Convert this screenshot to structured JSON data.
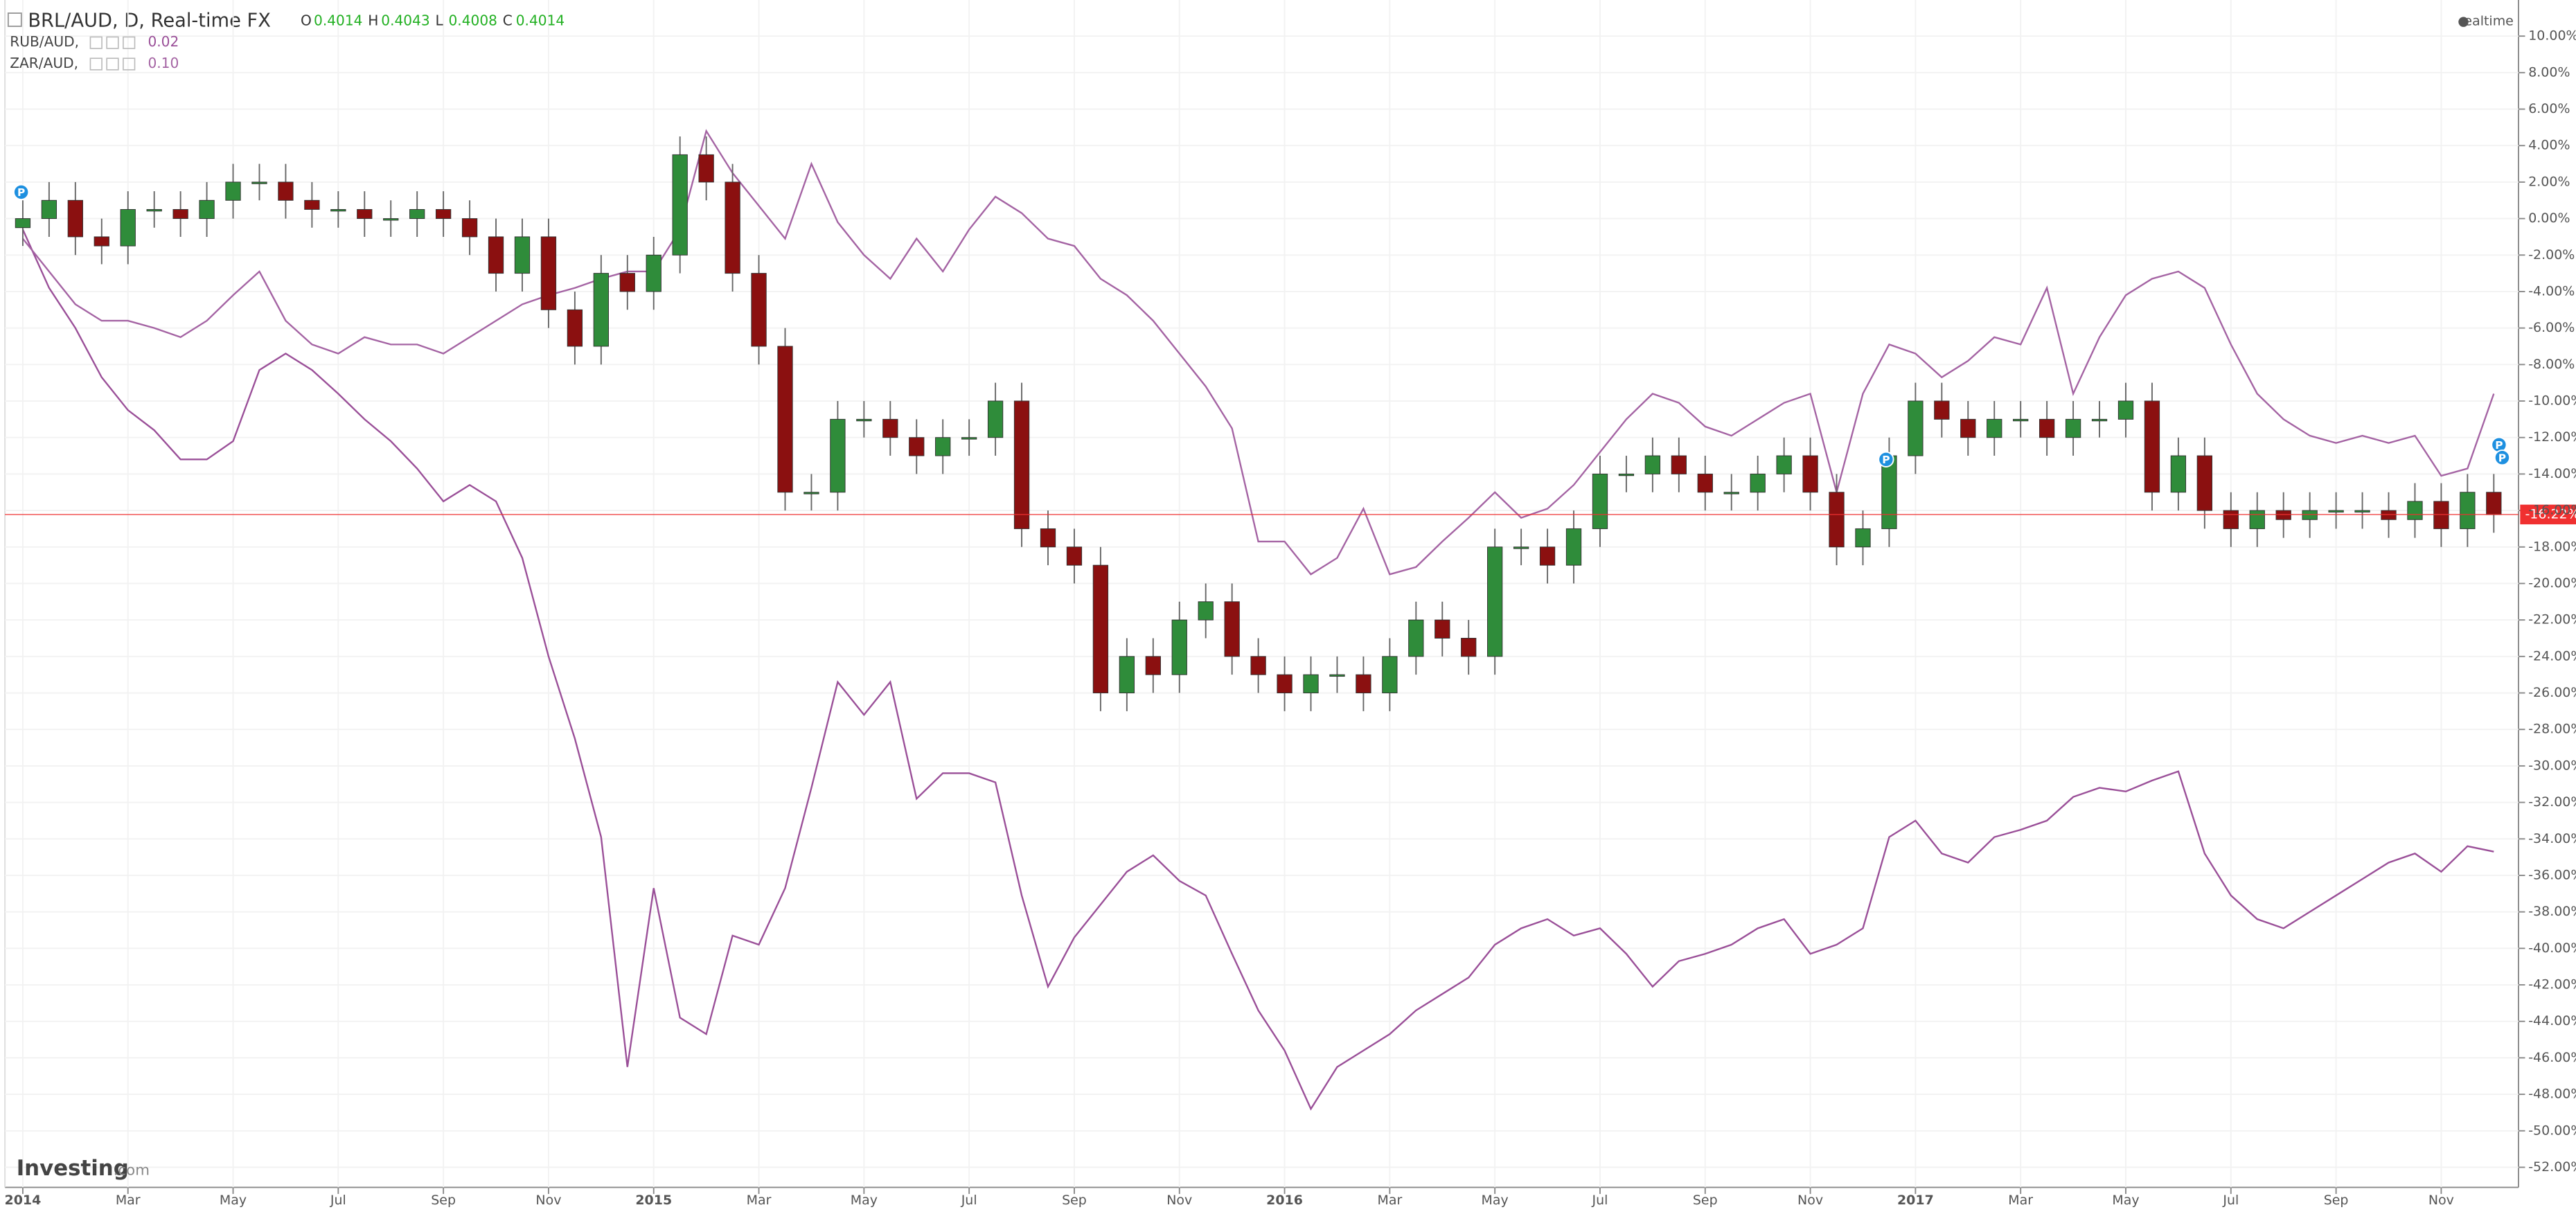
{
  "chart_data": {
    "type": "candlestick",
    "header": "BRL/AUD, D, Real-time FX",
    "ohlc_labels": [
      "O",
      "H",
      "L",
      "C"
    ],
    "ohlc": [
      0.4014,
      0.4043,
      0.4008,
      0.4014
    ],
    "ohlc_color": "#22b022",
    "status": "realtime",
    "logo_main": "Investing",
    "logo_suffix": ".com",
    "candles": {
      "up_color": "#2f8c3a",
      "down_color": "#8b1010",
      "wick_color": "#666666",
      "x": [
        0,
        0.5,
        1,
        1.5,
        2,
        2.5,
        3,
        3.5,
        4,
        4.5,
        5,
        5.5,
        6,
        6.5,
        7,
        7.5,
        8,
        8.5,
        9,
        9.5,
        10,
        10.5,
        11,
        11.5,
        12,
        12.5,
        13,
        13.5,
        14,
        14.5,
        15,
        15.5,
        16,
        16.5,
        17,
        17.5,
        18,
        18.5,
        19,
        19.5,
        20,
        20.5,
        21,
        21.5,
        22,
        22.5,
        23,
        23.5,
        24,
        24.5,
        25,
        25.5,
        26,
        26.5,
        27,
        27.5,
        28,
        28.5,
        29,
        29.5,
        30,
        30.5,
        31,
        31.5,
        32,
        32.5,
        33,
        33.5,
        34,
        34.5,
        35,
        35.5,
        36,
        36.5,
        37,
        37.5,
        38,
        38.5,
        39,
        39.5,
        40,
        40.5,
        41,
        41.5,
        42,
        42.5,
        43,
        43.5,
        44,
        44.5,
        45,
        45.5,
        46,
        46.5,
        47
      ],
      "open": [
        -0.5,
        0,
        1,
        -1,
        -1.5,
        0.5,
        0.5,
        0,
        1,
        2,
        2,
        1,
        0.5,
        0.5,
        0,
        0,
        0.5,
        0,
        -1,
        -3,
        -1,
        -5,
        -7,
        -3,
        -4,
        -2,
        3.5,
        2,
        -3,
        -7,
        -15,
        -15,
        -11,
        -11,
        -12,
        -13,
        -12,
        -12,
        -10,
        -17,
        -18,
        -19,
        -26,
        -24,
        -25,
        -22,
        -21,
        -24,
        -25,
        -26,
        -25,
        -25,
        -26,
        -24,
        -22,
        -23,
        -24,
        -18,
        -18,
        -19,
        -17,
        -14,
        -14,
        -13,
        -14,
        -15,
        -15,
        -14,
        -13,
        -15,
        -18,
        -17,
        -13,
        -10,
        -11,
        -12,
        -11,
        -11,
        -12,
        -11,
        -11,
        -10,
        -15,
        -13,
        -16,
        -17,
        -16,
        -16.5,
        -16,
        -16,
        -16,
        -16.5,
        -15.5,
        -17,
        -15
      ],
      "high": [
        1,
        2,
        2,
        0,
        1.5,
        1.5,
        1.5,
        2,
        3,
        3,
        3,
        2,
        1.5,
        1.5,
        1,
        1.5,
        1.5,
        1,
        0,
        0,
        0,
        -4,
        -2,
        -2,
        -1,
        4.5,
        4.5,
        3,
        -2,
        -6,
        -14,
        -10,
        -10,
        -10,
        -11,
        -11,
        -11,
        -9,
        -9,
        -16,
        -17,
        -18,
        -23,
        -23,
        -21,
        -20,
        -20,
        -23,
        -24,
        -24,
        -24,
        -24,
        -23,
        -21,
        -21,
        -22,
        -17,
        -17,
        -17,
        -16,
        -13,
        -13,
        -12,
        -12,
        -13,
        -14,
        -13,
        -12,
        -12,
        -14,
        -16,
        -12,
        -9,
        -9,
        -10,
        -10,
        -10,
        -10,
        -10,
        -10,
        -9,
        -9,
        -12,
        -12,
        -15,
        -15,
        -15,
        -15,
        -15,
        -15,
        -15,
        -14.5,
        -14.5,
        -14,
        -14
      ],
      "low": [
        -1.5,
        -1,
        -2,
        -2.5,
        -2.5,
        -0.5,
        -1,
        -1,
        0,
        1,
        0,
        -0.5,
        -0.5,
        -1,
        -1,
        -1,
        -1,
        -2,
        -4,
        -4,
        -6,
        -8,
        -8,
        -5,
        -5,
        -3,
        1,
        -4,
        -8,
        -16,
        -16,
        -16,
        -12,
        -13,
        -14,
        -14,
        -13,
        -13,
        -18,
        -19,
        -20,
        -27,
        -27,
        -26,
        -26,
        -23,
        -25,
        -26,
        -27,
        -27,
        -26,
        -27,
        -27,
        -25,
        -24,
        -25,
        -25,
        -19,
        -20,
        -20,
        -18,
        -15,
        -15,
        -15,
        -16,
        -16,
        -16,
        -15,
        -16,
        -19,
        -19,
        -18,
        -14,
        -12,
        -13,
        -13,
        -12,
        -13,
        -13,
        -12,
        -12,
        -16,
        -16,
        -17,
        -18,
        -18,
        -17.5,
        -17.5,
        -17,
        -17,
        -17.5,
        -17.5,
        -18,
        -18,
        -17.22
      ],
      "close": [
        0,
        1,
        -1,
        -1.5,
        0.5,
        0.5,
        0,
        1,
        2,
        2,
        1,
        0.5,
        0.5,
        0,
        0,
        0.5,
        0,
        -1,
        -3,
        -1,
        -5,
        -7,
        -3,
        -4,
        -2,
        3.5,
        2,
        -3,
        -7,
        -15,
        -15,
        -11,
        -11,
        -12,
        -13,
        -12,
        -12,
        -10,
        -17,
        -18,
        -19,
        -26,
        -24,
        -25,
        -22,
        -21,
        -24,
        -25,
        -26,
        -25,
        -25,
        -26,
        -24,
        -22,
        -23,
        -24,
        -18,
        -18,
        -19,
        -17,
        -14,
        -14,
        -13,
        -14,
        -15,
        -15,
        -14,
        -13,
        -15,
        -18,
        -17,
        -13,
        -10,
        -11,
        -12,
        -11,
        -11,
        -12,
        -11,
        -11,
        -10,
        -15,
        -13,
        -16,
        -17,
        -16,
        -16.5,
        -16,
        -16,
        -16,
        -16.5,
        -15.5,
        -17,
        -15,
        -16.22
      ]
    },
    "series": [
      {
        "name": "RUB/AUD,",
        "type": "line",
        "color": "#9a4f98",
        "last": {
          "value": 0.02,
          "label": "0.02"
        },
        "x": [
          0,
          0.5,
          1,
          1.5,
          2,
          2.5,
          3,
          3.5,
          4,
          4.5,
          5,
          5.5,
          6,
          6.5,
          7,
          7.5,
          8,
          8.5,
          9,
          9.5,
          10,
          10.5,
          11,
          11.5,
          12,
          12.5,
          13,
          13.5,
          14,
          14.5,
          15,
          15.5,
          16,
          16.5,
          17,
          17.5,
          18,
          18.5,
          19,
          19.5,
          20,
          20.5,
          21,
          21.5,
          22,
          22.5,
          23,
          23.5,
          24,
          24.5,
          25,
          25.5,
          26,
          26.5,
          27,
          27.5,
          28,
          28.5,
          29,
          29.5,
          30,
          30.5,
          31,
          31.5,
          32,
          32.5,
          33,
          33.5,
          34,
          34.5,
          35,
          35.5,
          36,
          36.5,
          37,
          37.5,
          38,
          38.5,
          39,
          39.5,
          40,
          40.5,
          41,
          41.5,
          42,
          42.5,
          43,
          43.5,
          44,
          44.5,
          45,
          45.5,
          46,
          46.5,
          47
        ],
        "values": [
          -0.6,
          -3.8,
          -6,
          -8.7,
          -10.5,
          -11.6,
          -13.2,
          -13.2,
          -12.2,
          -8.3,
          -7.4,
          -8.3,
          -9.6,
          -11,
          -12.2,
          -13.7,
          -15.5,
          -14.6,
          -15.5,
          -18.6,
          -24,
          -28.5,
          -33.9,
          -46.5,
          -36.7,
          -43.8,
          -44.7,
          -39.3,
          -39.8,
          -36.7,
          -31.2,
          -25.4,
          -27.2,
          -25.4,
          -31.8,
          -30.4,
          -30.4,
          -30.9,
          -37.1,
          -42.1,
          -39.4,
          -37.6,
          -35.8,
          -34.9,
          -36.3,
          -37.1,
          -40.3,
          -43.4,
          -45.6,
          -48.8,
          -46.5,
          -45.6,
          -44.7,
          -43.4,
          -42.5,
          -41.6,
          -39.8,
          -38.9,
          -38.4,
          -39.3,
          -38.9,
          -40.3,
          -42.1,
          -40.7,
          -40.3,
          -39.8,
          -38.9,
          -38.4,
          -40.3,
          -39.8,
          -38.9,
          -33.9,
          -33,
          -34.8,
          -35.3,
          -33.9,
          -33.5,
          -33,
          -31.7,
          -31.2,
          -31.4,
          -30.8,
          -30.3,
          -34.8,
          -37.1,
          -38.4,
          -38.9,
          -38,
          -37.1,
          -36.2,
          -35.3,
          -34.8,
          -35.8,
          -34.4,
          -34.7
        ]
      },
      {
        "name": "ZAR/AUD,",
        "type": "line",
        "color": "#a463a3",
        "last": {
          "value": 0.1,
          "label": "0.10"
        },
        "x": [
          0,
          0.5,
          1,
          1.5,
          2,
          2.5,
          3,
          3.5,
          4,
          4.5,
          5,
          5.5,
          6,
          6.5,
          7,
          7.5,
          8,
          8.5,
          9,
          9.5,
          10,
          10.5,
          11,
          11.5,
          12,
          12.5,
          13,
          13.5,
          14,
          14.5,
          15,
          15.5,
          16,
          16.5,
          17,
          17.5,
          18,
          18.5,
          19,
          19.5,
          20,
          20.5,
          21,
          21.5,
          22,
          22.5,
          23,
          23.5,
          24,
          24.5,
          25,
          25.5,
          26,
          26.5,
          27,
          27.5,
          28,
          28.5,
          29,
          29.5,
          30,
          30.5,
          31,
          31.5,
          32,
          32.5,
          33,
          33.5,
          34,
          34.5,
          35,
          35.5,
          36,
          36.5,
          37,
          37.5,
          38,
          38.5,
          39,
          39.5,
          40,
          40.5,
          41,
          41.5,
          42,
          42.5,
          43,
          43.5,
          44,
          44.5,
          45,
          45.5,
          46,
          46.5,
          47
        ],
        "values": [
          -1.1,
          -2.9,
          -4.7,
          -5.6,
          -5.6,
          -6,
          -6.5,
          -5.6,
          -4.2,
          -2.9,
          -5.6,
          -6.9,
          -7.4,
          -6.5,
          -6.9,
          -6.9,
          -7.4,
          -6.5,
          -5.6,
          -4.7,
          -4.2,
          -3.8,
          -3.3,
          -2.9,
          -2.9,
          -0.6,
          4.8,
          2.5,
          0.7,
          -1.1,
          3,
          -0.2,
          -2,
          -3.3,
          -1.1,
          -2.9,
          -0.6,
          1.2,
          0.3,
          -1.1,
          -1.5,
          -3.3,
          -4.2,
          -5.6,
          -7.4,
          -9.2,
          -11.5,
          -17.7,
          -17.7,
          -19.5,
          -18.6,
          -15.9,
          -19.5,
          -19.1,
          -17.7,
          -16.4,
          -15,
          -16.4,
          -15.9,
          -14.6,
          -12.8,
          -11,
          -9.6,
          -10.1,
          -11.4,
          -11.9,
          -11,
          -10.1,
          -9.6,
          -15,
          -9.6,
          -6.9,
          -7.4,
          -8.7,
          -7.8,
          -6.5,
          -6.9,
          -3.8,
          -9.6,
          -6.5,
          -4.2,
          -3.3,
          -2.9,
          -3.8,
          -6.9,
          -9.6,
          -11,
          -11.9,
          -12.3,
          -11.9,
          -12.3,
          -11.9,
          -14.1,
          -13.7,
          -9.6
        ]
      }
    ],
    "last_price": {
      "value": -16.22,
      "label": "-16.22%",
      "color": "#f03030"
    },
    "markers": [
      {
        "x": -0.03,
        "y": 1.45,
        "label": "P"
      },
      {
        "x": 35.44,
        "y": -13.2,
        "label": "P"
      },
      {
        "x": 47.1,
        "y": -12.4,
        "label": "P"
      },
      {
        "x": 47.16,
        "y": -13.1,
        "label": "P"
      }
    ],
    "marker_color": "#1e90e0",
    "xlim": [
      -0.34,
      47.47
    ],
    "ylim": [
      -53.1,
      11.98
    ],
    "grid": true,
    "xticks": [
      {
        "value": 0,
        "label": "2014"
      },
      {
        "value": 2,
        "label": "Mar"
      },
      {
        "value": 4,
        "label": "May"
      },
      {
        "value": 6,
        "label": "Jul"
      },
      {
        "value": 8,
        "label": "Sep"
      },
      {
        "value": 10,
        "label": "Nov"
      },
      {
        "value": 12,
        "label": "2015"
      },
      {
        "value": 14,
        "label": "Mar"
      },
      {
        "value": 16,
        "label": "May"
      },
      {
        "value": 18,
        "label": "Jul"
      },
      {
        "value": 20,
        "label": "Sep"
      },
      {
        "value": 22,
        "label": "Nov"
      },
      {
        "value": 24,
        "label": "2016"
      },
      {
        "value": 26,
        "label": "Mar"
      },
      {
        "value": 28,
        "label": "May"
      },
      {
        "value": 30,
        "label": "Jul"
      },
      {
        "value": 32,
        "label": "Sep"
      },
      {
        "value": 34,
        "label": "Nov"
      },
      {
        "value": 36,
        "label": "2017"
      },
      {
        "value": 38,
        "label": "Mar"
      },
      {
        "value": 40,
        "label": "May"
      },
      {
        "value": 42,
        "label": "Jul"
      },
      {
        "value": 44,
        "label": "Sep"
      },
      {
        "value": 46,
        "label": "Nov"
      }
    ],
    "yticks": [
      {
        "value": 10,
        "label": "10.00%"
      },
      {
        "value": 8,
        "label": "8.00%"
      },
      {
        "value": 6,
        "label": "6.00%"
      },
      {
        "value": 4,
        "label": "4.00%"
      },
      {
        "value": 2,
        "label": "2.00%"
      },
      {
        "value": 0,
        "label": "0.00%"
      },
      {
        "value": -2,
        "label": "-2.00%"
      },
      {
        "value": -4,
        "label": "-4.00%"
      },
      {
        "value": -6,
        "label": "-6.00%"
      },
      {
        "value": -8,
        "label": "-8.00%"
      },
      {
        "value": -10,
        "label": "-10.00%"
      },
      {
        "value": -12,
        "label": "-12.00%"
      },
      {
        "value": -14,
        "label": "-14.00%"
      },
      {
        "value": -16,
        "label": "-16.00%"
      },
      {
        "value": -18,
        "label": "-18.00%"
      },
      {
        "value": -20,
        "label": "-20.00%"
      },
      {
        "value": -22,
        "label": "-22.00%"
      },
      {
        "value": -24,
        "label": "-24.00%"
      },
      {
        "value": -26,
        "label": "-26.00%"
      },
      {
        "value": -28,
        "label": "-28.00%"
      },
      {
        "value": -30,
        "label": "-30.00%"
      },
      {
        "value": -32,
        "label": "-32.00%"
      },
      {
        "value": -34,
        "label": "-34.00%"
      },
      {
        "value": -36,
        "label": "-36.00%"
      },
      {
        "value": -38,
        "label": "-38.00%"
      },
      {
        "value": -40,
        "label": "-40.00%"
      },
      {
        "value": -42,
        "label": "-42.00%"
      },
      {
        "value": -44,
        "label": "-44.00%"
      },
      {
        "value": -46,
        "label": "-46.00%"
      },
      {
        "value": -48,
        "label": "-48.00%"
      },
      {
        "value": -50,
        "label": "-50.00%"
      },
      {
        "value": -52,
        "label": "-52.00%"
      }
    ]
  }
}
